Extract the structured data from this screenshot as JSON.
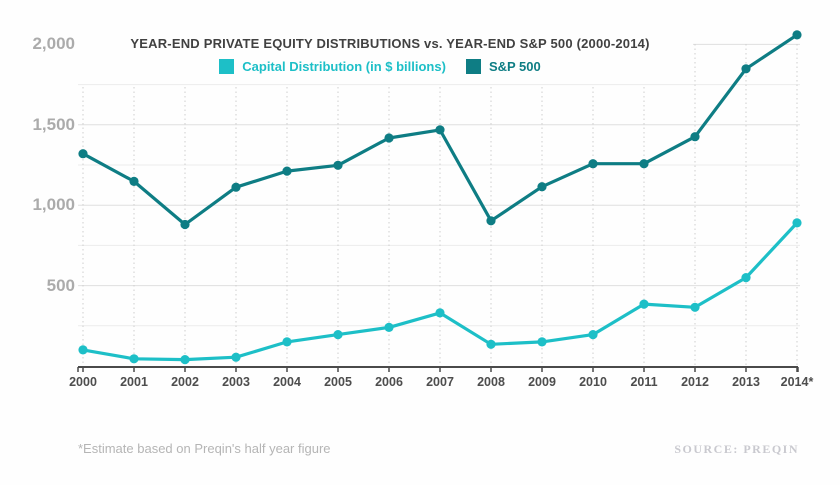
{
  "header": {
    "title": "YEAR-END PRIVATE EQUITY DISTRIBUTIONS vs. YEAR-END S&P 500 (2000-2014)"
  },
  "chart_data": {
    "type": "line",
    "categories": [
      "2000",
      "2001",
      "2002",
      "2003",
      "2004",
      "2005",
      "2006",
      "2007",
      "2008",
      "2009",
      "2010",
      "2011",
      "2012",
      "2013",
      "2014*"
    ],
    "series": [
      {
        "name": "Capital Distribution (in $ billions)",
        "color": "#1dbfc7",
        "values": [
          100,
          45,
          40,
          55,
          150,
          195,
          240,
          330,
          135,
          150,
          195,
          385,
          365,
          550,
          890
        ]
      },
      {
        "name": "S&P 500",
        "color": "#0e7d84",
        "values": [
          1320,
          1148,
          880,
          1112,
          1212,
          1248,
          1418,
          1468,
          903,
          1115,
          1258,
          1258,
          1426,
          1848,
          2059
        ]
      }
    ],
    "title": "YEAR-END PRIVATE EQUITY DISTRIBUTIONS vs. YEAR-END S&P 500 (2000-2014)",
    "xlabel": "",
    "ylabel": "",
    "ylim": [
      0,
      2000
    ],
    "grid_step": 250,
    "y_ticks": [
      {
        "value": 2000,
        "label": "2,000"
      },
      {
        "value": 1500,
        "label": "1,500"
      },
      {
        "value": 1000,
        "label": "1,000"
      },
      {
        "value": 500,
        "label": "500"
      }
    ],
    "grid": true,
    "legend_position": "top-center"
  },
  "footer": {
    "footnote": "*Estimate based on Preqin's half year figure",
    "source": "SOURCE: PREQIN"
  },
  "colors": {
    "capital_distribution": "#1dbfc7",
    "sp500": "#0e7d84",
    "title_text": "#414141",
    "y_tick_text": "#ababab",
    "x_tick_text": "#4d4d4d",
    "footnote_text": "#b5b5b5",
    "source_text": "#c9c9cf"
  }
}
